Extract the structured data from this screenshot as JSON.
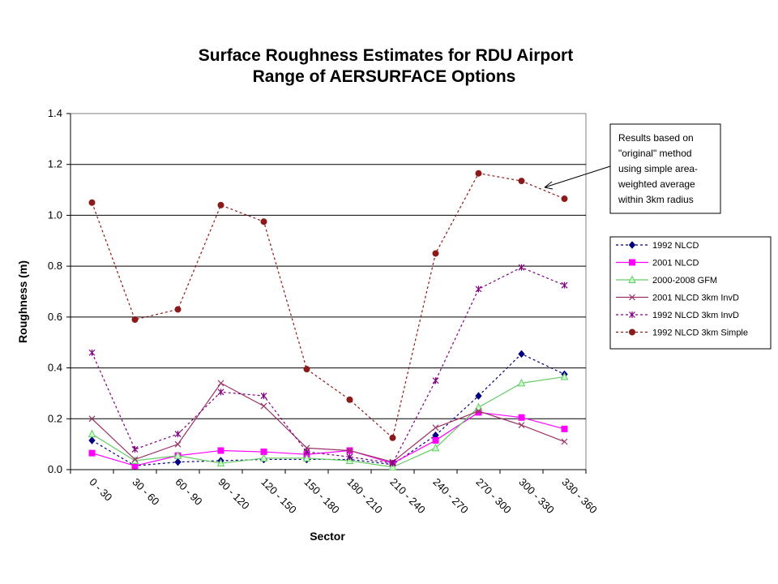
{
  "chart_data": {
    "type": "line",
    "title_lines": [
      "Surface Roughness Estimates for RDU Airport",
      "Range of AERSURFACE Options"
    ],
    "xlabel": "Sector",
    "ylabel": "Roughness (m)",
    "ylim": [
      0,
      1.4
    ],
    "yticks": [
      "0.0",
      "0.2",
      "0.4",
      "0.6",
      "0.8",
      "1.0",
      "1.2",
      "1.4"
    ],
    "ytick_values": [
      0,
      0.2,
      0.4,
      0.6,
      0.8,
      1.0,
      1.2,
      1.4
    ],
    "grid": "horizontal",
    "legend_position": "right",
    "categories": [
      "0 - 30",
      "30 - 60",
      "60 - 90",
      "90 - 120",
      "120 - 150",
      "150 - 180",
      "180 - 210",
      "210 - 240",
      "240 - 270",
      "270 - 300",
      "300 - 330",
      "330 - 360"
    ],
    "series": [
      {
        "name": "1992 NLCD",
        "color": "#000080",
        "dash": "3,3",
        "marker": "diamond",
        "values": [
          0.115,
          0.015,
          0.03,
          0.035,
          0.04,
          0.04,
          0.04,
          0.02,
          0.135,
          0.29,
          0.455,
          0.375
        ]
      },
      {
        "name": "2001 NLCD",
        "color": "#ff00ff",
        "dash": "",
        "marker": "square",
        "values": [
          0.065,
          0.015,
          0.055,
          0.075,
          0.07,
          0.06,
          0.075,
          0.025,
          0.115,
          0.225,
          0.205,
          0.16
        ]
      },
      {
        "name": "2000-2008 GFM",
        "color": "#66cc66",
        "dash": "",
        "marker": "triangle",
        "values": [
          0.14,
          0.035,
          0.055,
          0.025,
          0.045,
          0.045,
          0.035,
          0.01,
          0.085,
          0.245,
          0.34,
          0.365
        ]
      },
      {
        "name": "2001 NLCD 3km InvD",
        "color": "#993366",
        "dash": "",
        "marker": "x",
        "values": [
          0.2,
          0.04,
          0.1,
          0.34,
          0.25,
          0.085,
          0.075,
          0.03,
          0.165,
          0.23,
          0.175,
          0.11
        ]
      },
      {
        "name": "1992 NLCD 3km InvD",
        "color": "#800080",
        "dash": "3,3",
        "marker": "star",
        "values": [
          0.46,
          0.08,
          0.14,
          0.305,
          0.29,
          0.07,
          0.05,
          0.025,
          0.35,
          0.71,
          0.795,
          0.725
        ]
      },
      {
        "name": "1992 NLCD 3km Simple",
        "color": "#8b1a1a",
        "dash": "3,3",
        "marker": "circle",
        "values": [
          1.05,
          0.59,
          0.63,
          1.04,
          0.975,
          0.395,
          0.275,
          0.125,
          0.85,
          1.165,
          1.135,
          1.065
        ]
      }
    ],
    "annotation": {
      "lines": [
        "Results based on",
        "\"original\" method",
        "using simple area-",
        "weighted average",
        "within 3km radius"
      ],
      "points_to_series": "1992 NLCD 3km Simple",
      "points_to_category": "300 - 330"
    }
  }
}
